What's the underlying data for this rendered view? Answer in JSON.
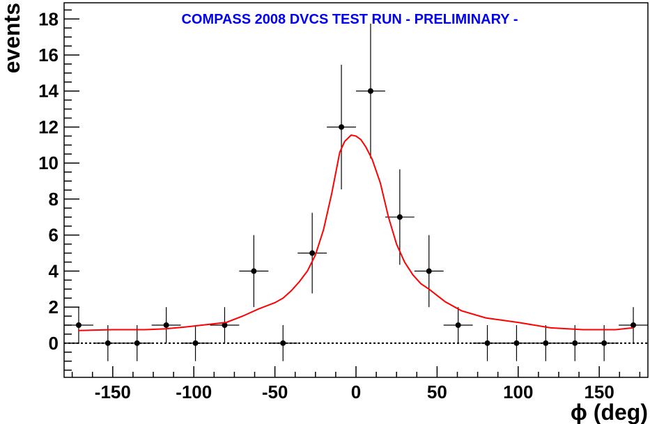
{
  "chart_data": {
    "type": "scatter",
    "title": "COMPASS 2008 DVCS TEST RUN  - PRELIMINARY -",
    "xlabel": "ϕ (deg)",
    "ylabel": "events",
    "xlim": [
      -180,
      180
    ],
    "ylim": [
      -1.9,
      18.9
    ],
    "x_ticks": [
      -150,
      -100,
      -50,
      0,
      50,
      100,
      150
    ],
    "y_ticks": [
      0,
      2,
      4,
      6,
      8,
      10,
      12,
      14,
      16,
      18
    ],
    "x_tick_labels": [
      "-150",
      "-100",
      "-50",
      "0",
      "50",
      "100",
      "150"
    ],
    "y_tick_labels": [
      "0",
      "2",
      "4",
      "6",
      "8",
      "10",
      "12",
      "14",
      "16",
      "18"
    ],
    "grid": false,
    "colors": {
      "title": "#0000ee",
      "fit": "#ff0000",
      "points": "#000000"
    },
    "series": [
      {
        "kind": "points-with-errors",
        "bin_half_width": 9,
        "x": [
          -171,
          -153,
          -135,
          -117,
          -99,
          -81,
          -63,
          -45,
          -27,
          -9,
          9,
          27,
          45,
          63,
          81,
          99,
          117,
          135,
          153,
          171
        ],
        "y": [
          1,
          0,
          0,
          1,
          0,
          1,
          4,
          0,
          5,
          12,
          14,
          7,
          4,
          1,
          0,
          0,
          0,
          0,
          0,
          1
        ],
        "err": [
          1,
          1,
          1,
          1,
          1,
          1,
          2,
          1,
          2.24,
          3.46,
          3.74,
          2.65,
          2,
          1,
          1,
          1,
          1,
          1,
          1,
          1
        ]
      },
      {
        "kind": "curve",
        "x": [
          -171,
          -150,
          -130,
          -117,
          -105,
          -95,
          -80,
          -70,
          -60,
          -50,
          -45,
          -40,
          -35,
          -30,
          -25,
          -20,
          -15,
          -10,
          -7,
          -3,
          0,
          3,
          6,
          10,
          15,
          20,
          25,
          30,
          35,
          40,
          45,
          55,
          65,
          80,
          100,
          120,
          140,
          160,
          171
        ],
        "y": [
          0.7,
          0.75,
          0.75,
          0.8,
          0.9,
          1.0,
          1.15,
          1.5,
          1.9,
          2.25,
          2.5,
          2.9,
          3.4,
          4.0,
          4.9,
          6.3,
          8.3,
          10.6,
          11.2,
          11.55,
          11.5,
          11.3,
          10.9,
          10.2,
          8.9,
          7.0,
          5.5,
          4.5,
          3.8,
          3.3,
          3.0,
          2.3,
          1.8,
          1.4,
          1.15,
          0.85,
          0.75,
          0.75,
          0.85
        ]
      }
    ],
    "reference_line": {
      "y": 0,
      "style": "dotted"
    }
  }
}
